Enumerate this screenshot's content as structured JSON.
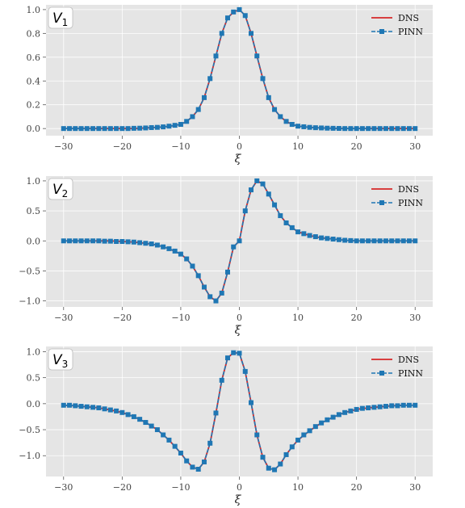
{
  "chart_data": [
    {
      "type": "line",
      "panel_label": "V",
      "panel_sub": "1",
      "xlabel": "ξ",
      "ylabel": "",
      "xlim": [
        -33,
        33
      ],
      "ylim": [
        -0.06,
        1.04
      ],
      "xticks": [
        -30,
        -20,
        -10,
        0,
        10,
        20,
        30
      ],
      "xtick_labels": [
        "−30",
        "−20",
        "−10",
        "0",
        "10",
        "20",
        "30"
      ],
      "yticks": [
        0.0,
        0.2,
        0.4,
        0.6,
        0.8,
        1.0
      ],
      "ytick_labels": [
        "0.0",
        "0.2",
        "0.4",
        "0.6",
        "0.8",
        "1.0"
      ],
      "grid": true,
      "legend": "top-right",
      "series": [
        {
          "name": "DNS",
          "color": "#d62728",
          "x": [
            -30,
            -28,
            -26,
            -24,
            -22,
            -20,
            -18,
            -16,
            -14,
            -12,
            -10,
            -9,
            -8,
            -7,
            -6,
            -5,
            -4,
            -3,
            -2,
            -1,
            0,
            1,
            2,
            3,
            4,
            5,
            6,
            7,
            8,
            9,
            10,
            12,
            14,
            16,
            18,
            20,
            22,
            24,
            26,
            28,
            30
          ],
          "y": [
            0.0,
            0.0,
            0.0,
            0.0,
            0.0,
            0.0,
            0.0,
            0.005,
            0.01,
            0.018,
            0.035,
            0.06,
            0.1,
            0.16,
            0.26,
            0.42,
            0.61,
            0.8,
            0.93,
            0.98,
            1.0,
            0.95,
            0.8,
            0.61,
            0.42,
            0.26,
            0.16,
            0.1,
            0.06,
            0.035,
            0.02,
            0.01,
            0.005,
            0.002,
            0.0,
            0.0,
            0.0,
            0.0,
            0.0,
            0.0,
            0.0
          ]
        },
        {
          "name": "PINN",
          "color": "#1f77b4",
          "x": [
            -30,
            -29,
            -28,
            -27,
            -26,
            -25,
            -24,
            -23,
            -22,
            -21,
            -20,
            -19,
            -18,
            -17,
            -16,
            -15,
            -14,
            -13,
            -12,
            -11,
            -10,
            -9,
            -8,
            -7,
            -6,
            -5,
            -4,
            -3,
            -2,
            -1,
            0,
            1,
            2,
            3,
            4,
            5,
            6,
            7,
            8,
            9,
            10,
            11,
            12,
            13,
            14,
            15,
            16,
            17,
            18,
            19,
            20,
            21,
            22,
            23,
            24,
            25,
            26,
            27,
            28,
            29,
            30
          ],
          "y": [
            0.0,
            0.0,
            0.0,
            0.0,
            0.0,
            0.0,
            0.0,
            0.0,
            0.0,
            0.0,
            0.0,
            0.0,
            0.002,
            0.003,
            0.005,
            0.008,
            0.01,
            0.014,
            0.02,
            0.027,
            0.035,
            0.06,
            0.1,
            0.16,
            0.26,
            0.42,
            0.61,
            0.8,
            0.93,
            0.98,
            1.0,
            0.95,
            0.8,
            0.61,
            0.42,
            0.26,
            0.16,
            0.1,
            0.06,
            0.035,
            0.02,
            0.015,
            0.01,
            0.007,
            0.005,
            0.003,
            0.002,
            0.001,
            0.0,
            0.0,
            0.0,
            0.0,
            0.0,
            0.0,
            0.0,
            0.0,
            0.0,
            0.0,
            0.0,
            0.0,
            0.0
          ]
        }
      ]
    },
    {
      "type": "line",
      "panel_label": "V",
      "panel_sub": "2",
      "xlabel": "ξ",
      "ylabel": "",
      "xlim": [
        -33,
        33
      ],
      "ylim": [
        -1.1,
        1.08
      ],
      "xticks": [
        -30,
        -20,
        -10,
        0,
        10,
        20,
        30
      ],
      "xtick_labels": [
        "−30",
        "−20",
        "−10",
        "0",
        "10",
        "20",
        "30"
      ],
      "yticks": [
        -1.0,
        -0.5,
        0.0,
        0.5,
        1.0
      ],
      "ytick_labels": [
        "−1.0",
        "−0.5",
        "0.0",
        "0.5",
        "1.0"
      ],
      "grid": true,
      "legend": "top-right",
      "series": [
        {
          "name": "DNS",
          "color": "#d62728",
          "x": [
            -30,
            -28,
            -26,
            -24,
            -22,
            -20,
            -18,
            -16,
            -14,
            -12,
            -10,
            -9,
            -8,
            -7,
            -6,
            -5,
            -4,
            -3,
            -2,
            -1,
            0,
            1,
            2,
            3,
            4,
            5,
            6,
            7,
            8,
            9,
            10,
            12,
            14,
            16,
            18,
            20,
            22,
            24,
            26,
            28,
            30
          ],
          "y": [
            0.0,
            0.0,
            0.0,
            0.0,
            0.0,
            -0.01,
            -0.02,
            -0.04,
            -0.07,
            -0.13,
            -0.22,
            -0.3,
            -0.42,
            -0.58,
            -0.77,
            -0.93,
            -1.0,
            -0.87,
            -0.52,
            -0.1,
            0.0,
            0.5,
            0.85,
            1.0,
            0.95,
            0.78,
            0.6,
            0.42,
            0.3,
            0.22,
            0.15,
            0.09,
            0.05,
            0.03,
            0.01,
            0.0,
            0.0,
            0.0,
            0.0,
            0.0,
            0.0
          ]
        },
        {
          "name": "PINN",
          "color": "#1f77b4",
          "x": [
            -30,
            -29,
            -28,
            -27,
            -26,
            -25,
            -24,
            -23,
            -22,
            -21,
            -20,
            -19,
            -18,
            -17,
            -16,
            -15,
            -14,
            -13,
            -12,
            -11,
            -10,
            -9,
            -8,
            -7,
            -6,
            -5,
            -4,
            -3,
            -2,
            -1,
            0,
            1,
            2,
            3,
            4,
            5,
            6,
            7,
            8,
            9,
            10,
            11,
            12,
            13,
            14,
            15,
            16,
            17,
            18,
            19,
            20,
            21,
            22,
            23,
            24,
            25,
            26,
            27,
            28,
            29,
            30
          ],
          "y": [
            0.0,
            0.0,
            0.0,
            0.0,
            0.0,
            0.0,
            0.0,
            -0.005,
            -0.005,
            -0.01,
            -0.01,
            -0.015,
            -0.02,
            -0.03,
            -0.04,
            -0.05,
            -0.07,
            -0.1,
            -0.13,
            -0.17,
            -0.22,
            -0.3,
            -0.42,
            -0.58,
            -0.77,
            -0.93,
            -1.0,
            -0.87,
            -0.52,
            -0.1,
            0.0,
            0.5,
            0.85,
            1.0,
            0.95,
            0.78,
            0.6,
            0.42,
            0.3,
            0.22,
            0.15,
            0.12,
            0.09,
            0.07,
            0.05,
            0.04,
            0.03,
            0.02,
            0.01,
            0.005,
            0.0,
            0.0,
            0.0,
            0.0,
            0.0,
            0.0,
            0.0,
            0.0,
            0.0,
            0.0,
            0.0
          ]
        }
      ]
    },
    {
      "type": "line",
      "panel_label": "V",
      "panel_sub": "3",
      "xlabel": "ξ",
      "ylabel": "",
      "xlim": [
        -33,
        33
      ],
      "ylim": [
        -1.4,
        1.1
      ],
      "xticks": [
        -30,
        -20,
        -10,
        0,
        10,
        20,
        30
      ],
      "xtick_labels": [
        "−30",
        "−20",
        "−10",
        "0",
        "10",
        "20",
        "30"
      ],
      "yticks": [
        -1.0,
        -0.5,
        0.0,
        0.5,
        1.0
      ],
      "ytick_labels": [
        "−1.0",
        "−0.5",
        "0.0",
        "0.5",
        "1.0"
      ],
      "grid": true,
      "legend": "top-right",
      "series": [
        {
          "name": "DNS",
          "color": "#d62728",
          "x": [
            -30,
            -28,
            -26,
            -24,
            -22,
            -20,
            -18,
            -16,
            -14,
            -12,
            -10,
            -9,
            -8,
            -7,
            -6,
            -5,
            -4,
            -3,
            -2,
            -1,
            0,
            1,
            2,
            3,
            4,
            5,
            6,
            7,
            8,
            9,
            10,
            12,
            14,
            16,
            18,
            20,
            22,
            24,
            26,
            28,
            30
          ],
          "y": [
            -0.03,
            -0.04,
            -0.06,
            -0.08,
            -0.12,
            -0.17,
            -0.25,
            -0.36,
            -0.5,
            -0.7,
            -0.95,
            -1.1,
            -1.22,
            -1.26,
            -1.12,
            -0.76,
            -0.18,
            0.45,
            0.88,
            0.98,
            0.97,
            0.62,
            0.02,
            -0.6,
            -1.03,
            -1.24,
            -1.27,
            -1.16,
            -0.98,
            -0.83,
            -0.7,
            -0.52,
            -0.37,
            -0.26,
            -0.17,
            -0.11,
            -0.08,
            -0.06,
            -0.04,
            -0.03,
            -0.03
          ]
        },
        {
          "name": "PINN",
          "color": "#1f77b4",
          "x": [
            -30,
            -29,
            -28,
            -27,
            -26,
            -25,
            -24,
            -23,
            -22,
            -21,
            -20,
            -19,
            -18,
            -17,
            -16,
            -15,
            -14,
            -13,
            -12,
            -11,
            -10,
            -9,
            -8,
            -7,
            -6,
            -5,
            -4,
            -3,
            -2,
            -1,
            0,
            1,
            2,
            3,
            4,
            5,
            6,
            7,
            8,
            9,
            10,
            11,
            12,
            13,
            14,
            15,
            16,
            17,
            18,
            19,
            20,
            21,
            22,
            23,
            24,
            25,
            26,
            27,
            28,
            29,
            30
          ],
          "y": [
            -0.03,
            -0.03,
            -0.04,
            -0.05,
            -0.06,
            -0.07,
            -0.08,
            -0.1,
            -0.12,
            -0.14,
            -0.17,
            -0.21,
            -0.25,
            -0.3,
            -0.36,
            -0.43,
            -0.5,
            -0.6,
            -0.7,
            -0.82,
            -0.95,
            -1.1,
            -1.22,
            -1.26,
            -1.12,
            -0.76,
            -0.18,
            0.45,
            0.88,
            0.98,
            0.97,
            0.62,
            0.02,
            -0.6,
            -1.03,
            -1.24,
            -1.27,
            -1.16,
            -0.98,
            -0.83,
            -0.7,
            -0.6,
            -0.52,
            -0.44,
            -0.37,
            -0.31,
            -0.26,
            -0.21,
            -0.17,
            -0.14,
            -0.11,
            -0.09,
            -0.08,
            -0.07,
            -0.06,
            -0.05,
            -0.04,
            -0.04,
            -0.03,
            -0.03,
            -0.03
          ]
        }
      ]
    }
  ]
}
